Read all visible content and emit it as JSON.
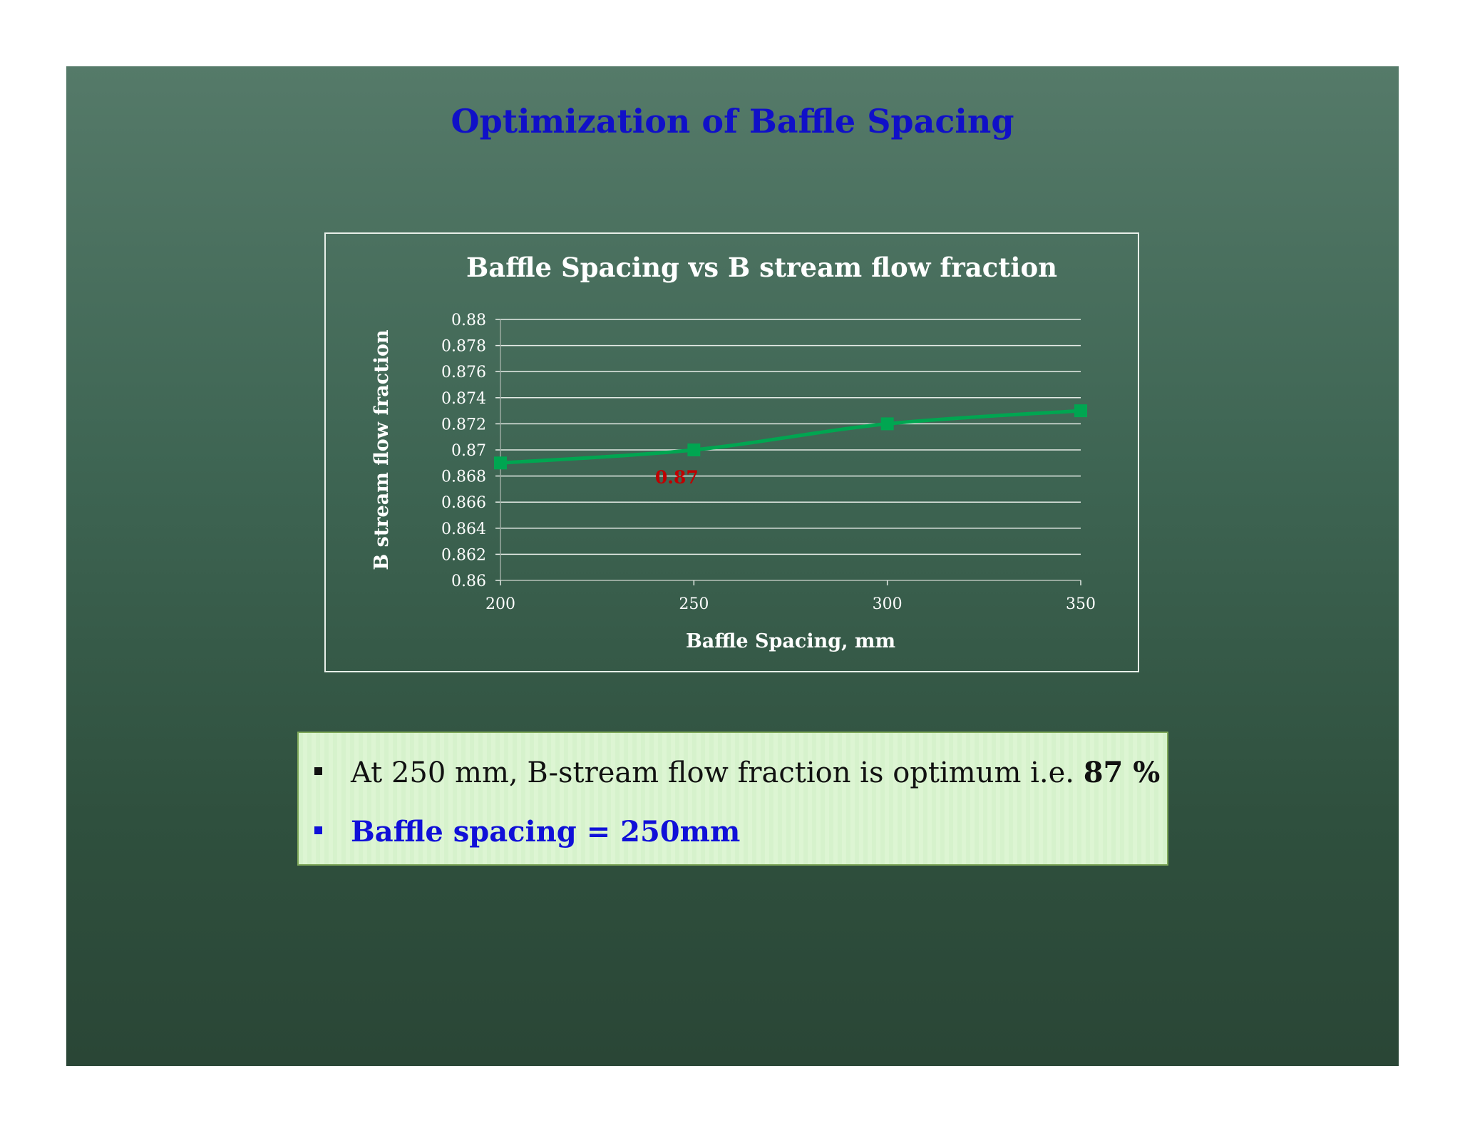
{
  "slide": {
    "title": "Optimization of Baffle Spacing"
  },
  "chart_data": {
    "type": "line",
    "title": "Baffle Spacing vs B stream flow fraction",
    "xlabel": "Baffle Spacing, mm",
    "ylabel": "B stream flow fraction",
    "x": [
      200,
      250,
      300,
      350
    ],
    "series": [
      {
        "values": [
          0.869,
          0.87,
          0.872,
          0.873
        ]
      }
    ],
    "xlim": [
      200,
      350
    ],
    "ylim": [
      0.86,
      0.88
    ],
    "xticks": [
      "200",
      "250",
      "300",
      "350"
    ],
    "yticks": [
      "0.86",
      "0.862",
      "0.864",
      "0.866",
      "0.868",
      "0.87",
      "0.872",
      "0.874",
      "0.876",
      "0.878",
      "0.88"
    ],
    "grid": true,
    "annotations": [
      {
        "text": "0.87",
        "x": 250,
        "y": 0.87,
        "color": "#c00000"
      }
    ],
    "colors": {
      "line": "#00a651",
      "marker": "#00a651",
      "text": "#ffffff",
      "grid": "#e6ece7"
    }
  },
  "bullets": {
    "item1_text": "At 250 mm, B-stream flow fraction is optimum i.e. ",
    "item1_emphasis": "87 %",
    "item2_text": "Baffle spacing = 250mm"
  }
}
